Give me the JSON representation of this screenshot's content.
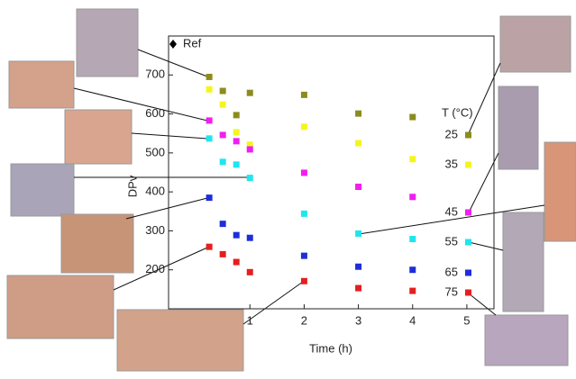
{
  "chart_data": {
    "type": "scatter",
    "y_label": "DPv",
    "x_label": "Time (h)",
    "legend_title": "T (°C)",
    "ref_label": "Ref",
    "x": [
      0.25,
      0.5,
      0.75,
      1,
      2,
      3,
      4
    ],
    "series": [
      {
        "name": "25",
        "color": "#8c8c1e",
        "values": [
          695,
          659,
          597,
          654,
          649,
          601,
          592
        ]
      },
      {
        "name": "35",
        "color": "#f5f51e",
        "values": [
          663,
          624,
          553,
          521,
          567,
          525,
          484
        ]
      },
      {
        "name": "45",
        "color": "#f01ef0",
        "values": [
          583,
          546,
          530,
          509,
          449,
          413,
          387
        ]
      },
      {
        "name": "55",
        "color": "#1ee6f0",
        "values": [
          537,
          477,
          470,
          436,
          344,
          293,
          279
        ]
      },
      {
        "name": "65",
        "color": "#1e2ed8",
        "values": [
          385,
          318,
          289,
          282,
          236,
          208,
          200
        ]
      },
      {
        "name": "75",
        "color": "#e61e1e",
        "values": [
          259,
          240,
          220,
          194,
          171,
          153,
          146
        ]
      }
    ],
    "xlim": [
      -0.5,
      5.5
    ],
    "xticks": [
      1,
      2,
      3,
      4,
      5
    ],
    "ylim": [
      100,
      800
    ],
    "yticks": [
      200,
      300,
      400,
      500,
      600,
      700
    ]
  }
}
